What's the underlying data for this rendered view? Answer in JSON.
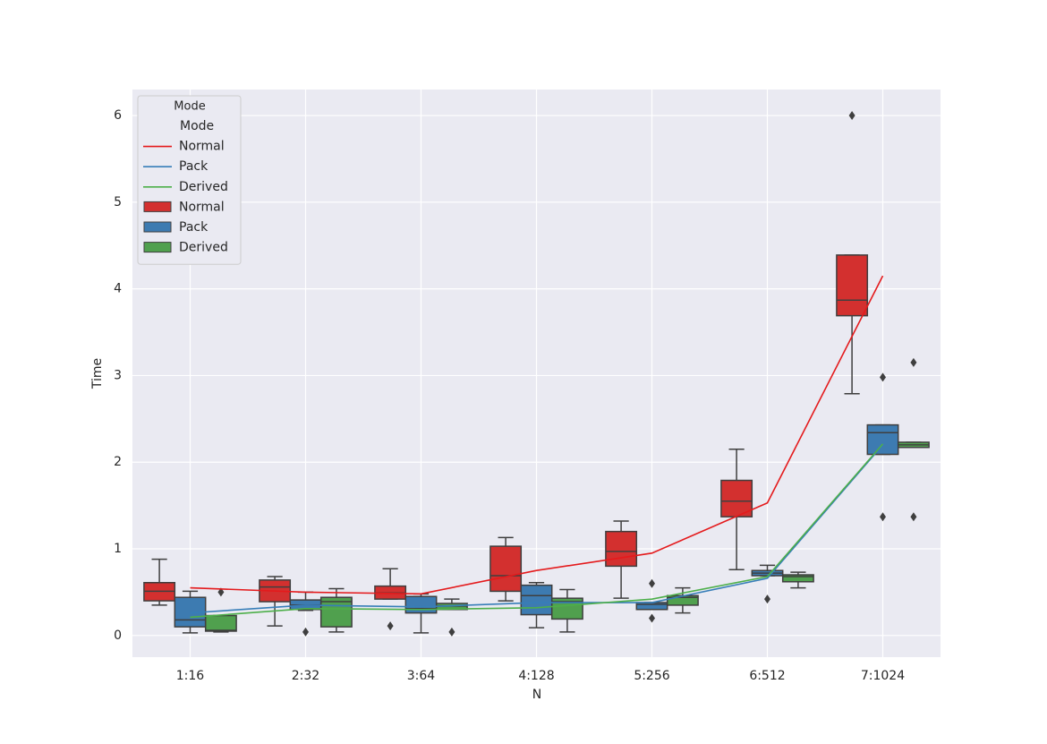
{
  "chart_data": {
    "type": "box",
    "x_label": "N",
    "y_label": "Time",
    "categories": [
      "1:16",
      "2:32",
      "3:64",
      "4:128",
      "5:256",
      "6:512",
      "7:1024"
    ],
    "ylim": [
      -0.25,
      6.3
    ],
    "yticks": [
      0,
      1,
      2,
      3,
      4,
      5,
      6
    ],
    "grid": true,
    "legend_position": "upper left",
    "legend_title": "Mode",
    "legend_header": "Mode",
    "line_series": [
      {
        "name": "Normal",
        "color": "#e41a1c",
        "values": [
          0.55,
          0.5,
          0.48,
          0.75,
          0.95,
          1.53,
          4.15
        ]
      },
      {
        "name": "Pack",
        "color": "#377eb8",
        "values": [
          0.26,
          0.35,
          0.33,
          0.38,
          0.38,
          0.66,
          2.2
        ]
      },
      {
        "name": "Derived",
        "color": "#4daf4a",
        "values": [
          0.21,
          0.31,
          0.3,
          0.32,
          0.42,
          0.68,
          2.21
        ]
      }
    ],
    "box_series": [
      {
        "name": "Normal",
        "color": "#d3302f",
        "whisker_low": [
          0.35,
          0.11,
          0.42,
          0.4,
          0.43,
          0.76,
          2.79
        ],
        "q1": [
          0.4,
          0.39,
          0.42,
          0.51,
          0.8,
          1.37,
          3.69
        ],
        "median": [
          0.51,
          0.56,
          0.49,
          0.69,
          0.97,
          1.55,
          3.87
        ],
        "q3": [
          0.61,
          0.64,
          0.57,
          1.03,
          1.2,
          1.79,
          4.39
        ],
        "whisker_high": [
          0.88,
          0.68,
          0.77,
          1.13,
          1.32,
          2.15,
          4.39
        ],
        "outliers": [
          [],
          [],
          [
            0.11
          ],
          [],
          [],
          [],
          [
            6.0
          ]
        ]
      },
      {
        "name": "Pack",
        "color": "#3d7bb1",
        "whisker_low": [
          0.03,
          0.29,
          0.03,
          0.09,
          0.3,
          0.69,
          2.09
        ],
        "q1": [
          0.1,
          0.3,
          0.26,
          0.24,
          0.3,
          0.69,
          2.09
        ],
        "median": [
          0.18,
          0.35,
          0.31,
          0.46,
          0.36,
          0.72,
          2.34
        ],
        "q3": [
          0.44,
          0.41,
          0.45,
          0.58,
          0.38,
          0.75,
          2.43
        ],
        "whisker_high": [
          0.51,
          0.5,
          0.48,
          0.61,
          0.38,
          0.81,
          2.43
        ],
        "outliers": [
          [],
          [
            0.04
          ],
          [],
          [],
          [
            0.6,
            0.2
          ],
          [
            0.42
          ],
          [
            2.98,
            1.37
          ]
        ]
      },
      {
        "name": "Derived",
        "color": "#50a04e",
        "whisker_low": [
          0.04,
          0.04,
          0.3,
          0.04,
          0.26,
          0.55,
          2.17
        ],
        "q1": [
          0.05,
          0.1,
          0.3,
          0.19,
          0.35,
          0.62,
          2.17
        ],
        "median": [
          0.06,
          0.39,
          0.34,
          0.39,
          0.44,
          0.68,
          2.2
        ],
        "q3": [
          0.23,
          0.44,
          0.37,
          0.43,
          0.46,
          0.7,
          2.23
        ],
        "whisker_high": [
          0.23,
          0.54,
          0.42,
          0.53,
          0.55,
          0.73,
          2.23
        ],
        "outliers": [
          [
            0.5
          ],
          [],
          [
            0.04
          ],
          [],
          [],
          [],
          [
            3.15,
            1.37
          ]
        ]
      }
    ]
  }
}
